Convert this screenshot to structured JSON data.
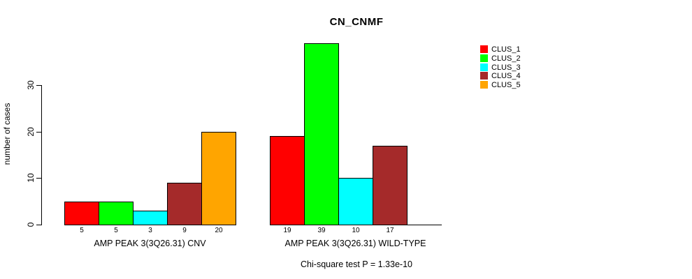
{
  "chart_data": {
    "type": "bar",
    "title": "CN_CNMF",
    "ylabel": "number of cases",
    "xlabel": "",
    "ylim": [
      0,
      40
    ],
    "yticks": [
      0,
      10,
      20,
      30
    ],
    "grid": false,
    "legend_position": "right",
    "series": [
      {
        "name": "CLUS_1",
        "color": "#ff0000"
      },
      {
        "name": "CLUS_2",
        "color": "#00ff00"
      },
      {
        "name": "CLUS_3",
        "color": "#00ffff"
      },
      {
        "name": "CLUS_4",
        "color": "#a52a2a"
      },
      {
        "name": "CLUS_5",
        "color": "#ffa500"
      }
    ],
    "groups": [
      {
        "label": "AMP PEAK 3(3Q26.31) CNV",
        "values": [
          5,
          5,
          3,
          9,
          20
        ],
        "value_labels": [
          "5",
          "5",
          "3",
          "9",
          "20"
        ]
      },
      {
        "label": "AMP PEAK 3(3Q26.31) WILD-TYPE",
        "values": [
          19,
          39,
          10,
          17,
          0
        ],
        "value_labels": [
          "19",
          "39",
          "10",
          "17",
          ""
        ]
      }
    ],
    "footnote": "Chi-square test P = 1.33e-10"
  }
}
